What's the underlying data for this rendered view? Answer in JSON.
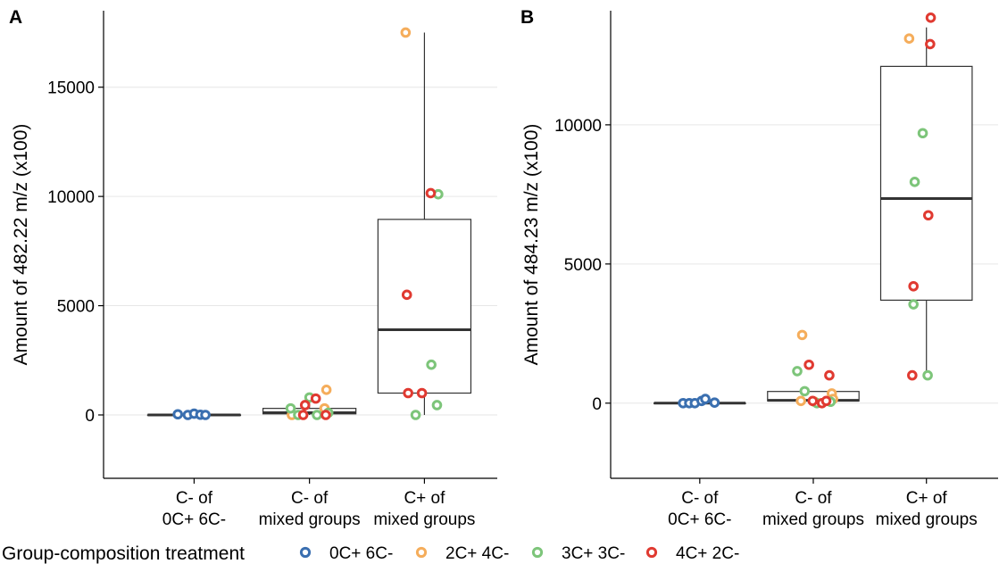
{
  "colors": {
    "0C+ 6C-": "#3a6fb0",
    "2C+ 4C-": "#f5ad5b",
    "3C+ 3C-": "#7dc57a",
    "4C+ 2C-": "#e03a31"
  },
  "legend": {
    "title": "Group-composition treatment",
    "items": [
      {
        "label": "0C+ 6C-",
        "icon": "open-circle-icon"
      },
      {
        "label": "2C+ 4C-",
        "icon": "open-circle-icon"
      },
      {
        "label": "3C+ 3C-",
        "icon": "open-circle-icon"
      },
      {
        "label": "4C+ 2C-",
        "icon": "open-circle-icon"
      }
    ]
  },
  "chart_data": [
    {
      "panel": "A",
      "type": "box",
      "ylabel": "Amount of 482.22  m/z (x100)",
      "categories": [
        [
          "C- of",
          "0C+ 6C-"
        ],
        [
          "C- of",
          "mixed groups"
        ],
        [
          "C+ of",
          "mixed groups"
        ]
      ],
      "ylim": [
        -2900,
        18500
      ],
      "yticks": [
        0,
        5000,
        10000,
        15000
      ],
      "grid": true,
      "boxes": [
        {
          "q1": 0,
          "median": 0,
          "q3": 0,
          "lower": 0,
          "upper": 0
        },
        {
          "q1": 50,
          "median": 100,
          "q3": 300,
          "lower": 0,
          "upper": 800
        },
        {
          "q1": 1000,
          "median": 3900,
          "q3": 8950,
          "lower": 0,
          "upper": 17500
        }
      ],
      "points": [
        {
          "cat": 0,
          "group": "0C+ 6C-",
          "y": 30,
          "jitter": -0.26
        },
        {
          "cat": 0,
          "group": "0C+ 6C-",
          "y": 0,
          "jitter": -0.1
        },
        {
          "cat": 0,
          "group": "0C+ 6C-",
          "y": 60,
          "jitter": 0.0
        },
        {
          "cat": 0,
          "group": "0C+ 6C-",
          "y": 10,
          "jitter": 0.1
        },
        {
          "cat": 0,
          "group": "0C+ 6C-",
          "y": 0,
          "jitter": 0.18
        },
        {
          "cat": 1,
          "group": "2C+ 4C-",
          "y": 0,
          "jitter": -0.28
        },
        {
          "cat": 1,
          "group": "2C+ 4C-",
          "y": 300,
          "jitter": 0.24
        },
        {
          "cat": 1,
          "group": "2C+ 4C-",
          "y": 1150,
          "jitter": 0.27
        },
        {
          "cat": 1,
          "group": "3C+ 3C-",
          "y": 300,
          "jitter": -0.3
        },
        {
          "cat": 1,
          "group": "3C+ 3C-",
          "y": 0,
          "jitter": -0.18
        },
        {
          "cat": 1,
          "group": "3C+ 3C-",
          "y": 800,
          "jitter": 0.0
        },
        {
          "cat": 1,
          "group": "3C+ 3C-",
          "y": 0,
          "jitter": 0.12
        },
        {
          "cat": 1,
          "group": "3C+ 3C-",
          "y": 100,
          "jitter": 0.3
        },
        {
          "cat": 1,
          "group": "4C+ 2C-",
          "y": 0,
          "jitter": -0.1
        },
        {
          "cat": 1,
          "group": "4C+ 2C-",
          "y": 450,
          "jitter": -0.07
        },
        {
          "cat": 1,
          "group": "4C+ 2C-",
          "y": 750,
          "jitter": 0.1
        },
        {
          "cat": 1,
          "group": "4C+ 2C-",
          "y": 0,
          "jitter": 0.26
        },
        {
          "cat": 2,
          "group": "2C+ 4C-",
          "y": 17500,
          "jitter": -0.3
        },
        {
          "cat": 2,
          "group": "3C+ 3C-",
          "y": 10100,
          "jitter": 0.22
        },
        {
          "cat": 2,
          "group": "3C+ 3C-",
          "y": 2300,
          "jitter": 0.11
        },
        {
          "cat": 2,
          "group": "3C+ 3C-",
          "y": 450,
          "jitter": 0.2
        },
        {
          "cat": 2,
          "group": "3C+ 3C-",
          "y": 0,
          "jitter": -0.14
        },
        {
          "cat": 2,
          "group": "4C+ 2C-",
          "y": 10150,
          "jitter": 0.1
        },
        {
          "cat": 2,
          "group": "4C+ 2C-",
          "y": 5500,
          "jitter": -0.28
        },
        {
          "cat": 2,
          "group": "4C+ 2C-",
          "y": 1000,
          "jitter": -0.26
        },
        {
          "cat": 2,
          "group": "4C+ 2C-",
          "y": 1000,
          "jitter": -0.04
        }
      ]
    },
    {
      "panel": "B",
      "type": "box",
      "ylabel": "Amount of 484.23  m/z (x100)",
      "categories": [
        [
          "C- of",
          "0C+ 6C-"
        ],
        [
          "C- of",
          "mixed groups"
        ],
        [
          "C+ of",
          "mixed groups"
        ]
      ],
      "ylim": [
        -2700,
        14100
      ],
      "yticks": [
        0,
        5000,
        10000
      ],
      "grid": true,
      "boxes": [
        {
          "q1": 0,
          "median": 0,
          "q3": 0,
          "lower": 0,
          "upper": 0
        },
        {
          "q1": 80,
          "median": 100,
          "q3": 420,
          "lower": 0,
          "upper": 420
        },
        {
          "q1": 3700,
          "median": 7350,
          "q3": 12100,
          "lower": 1000,
          "upper": 13500
        }
      ],
      "points": [
        {
          "cat": 0,
          "group": "0C+ 6C-",
          "y": 0,
          "jitter": -0.27
        },
        {
          "cat": 0,
          "group": "0C+ 6C-",
          "y": 0,
          "jitter": -0.17
        },
        {
          "cat": 0,
          "group": "0C+ 6C-",
          "y": 0,
          "jitter": -0.08
        },
        {
          "cat": 0,
          "group": "0C+ 6C-",
          "y": 80,
          "jitter": 0.03
        },
        {
          "cat": 0,
          "group": "0C+ 6C-",
          "y": 150,
          "jitter": 0.09
        },
        {
          "cat": 0,
          "group": "0C+ 6C-",
          "y": 20,
          "jitter": 0.24
        },
        {
          "cat": 1,
          "group": "2C+ 4C-",
          "y": 2450,
          "jitter": -0.18
        },
        {
          "cat": 1,
          "group": "2C+ 4C-",
          "y": 80,
          "jitter": -0.2
        },
        {
          "cat": 1,
          "group": "2C+ 4C-",
          "y": 50,
          "jitter": 0.02
        },
        {
          "cat": 1,
          "group": "2C+ 4C-",
          "y": 350,
          "jitter": 0.3
        },
        {
          "cat": 1,
          "group": "2C+ 4C-",
          "y": 150,
          "jitter": 0.32
        },
        {
          "cat": 1,
          "group": "3C+ 3C-",
          "y": 1150,
          "jitter": -0.26
        },
        {
          "cat": 1,
          "group": "3C+ 3C-",
          "y": 430,
          "jitter": -0.14
        },
        {
          "cat": 1,
          "group": "3C+ 3C-",
          "y": 0,
          "jitter": 0.06
        },
        {
          "cat": 1,
          "group": "3C+ 3C-",
          "y": 50,
          "jitter": 0.28
        },
        {
          "cat": 1,
          "group": "4C+ 2C-",
          "y": 1380,
          "jitter": -0.07
        },
        {
          "cat": 1,
          "group": "4C+ 2C-",
          "y": 80,
          "jitter": -0.01
        },
        {
          "cat": 1,
          "group": "4C+ 2C-",
          "y": 0,
          "jitter": 0.14
        },
        {
          "cat": 1,
          "group": "4C+ 2C-",
          "y": 80,
          "jitter": 0.21
        },
        {
          "cat": 1,
          "group": "4C+ 2C-",
          "y": 1000,
          "jitter": 0.26
        },
        {
          "cat": 2,
          "group": "2C+ 4C-",
          "y": 13100,
          "jitter": -0.28
        },
        {
          "cat": 2,
          "group": "3C+ 3C-",
          "y": 9700,
          "jitter": -0.06
        },
        {
          "cat": 2,
          "group": "3C+ 3C-",
          "y": 7950,
          "jitter": -0.19
        },
        {
          "cat": 2,
          "group": "3C+ 3C-",
          "y": 3550,
          "jitter": -0.21
        },
        {
          "cat": 2,
          "group": "3C+ 3C-",
          "y": 1000,
          "jitter": 0.02
        },
        {
          "cat": 2,
          "group": "4C+ 2C-",
          "y": 13850,
          "jitter": 0.07
        },
        {
          "cat": 2,
          "group": "4C+ 2C-",
          "y": 12900,
          "jitter": 0.06
        },
        {
          "cat": 2,
          "group": "4C+ 2C-",
          "y": 6750,
          "jitter": 0.03
        },
        {
          "cat": 2,
          "group": "4C+ 2C-",
          "y": 4200,
          "jitter": -0.21
        },
        {
          "cat": 2,
          "group": "4C+ 2C-",
          "y": 1000,
          "jitter": -0.23
        }
      ]
    }
  ]
}
